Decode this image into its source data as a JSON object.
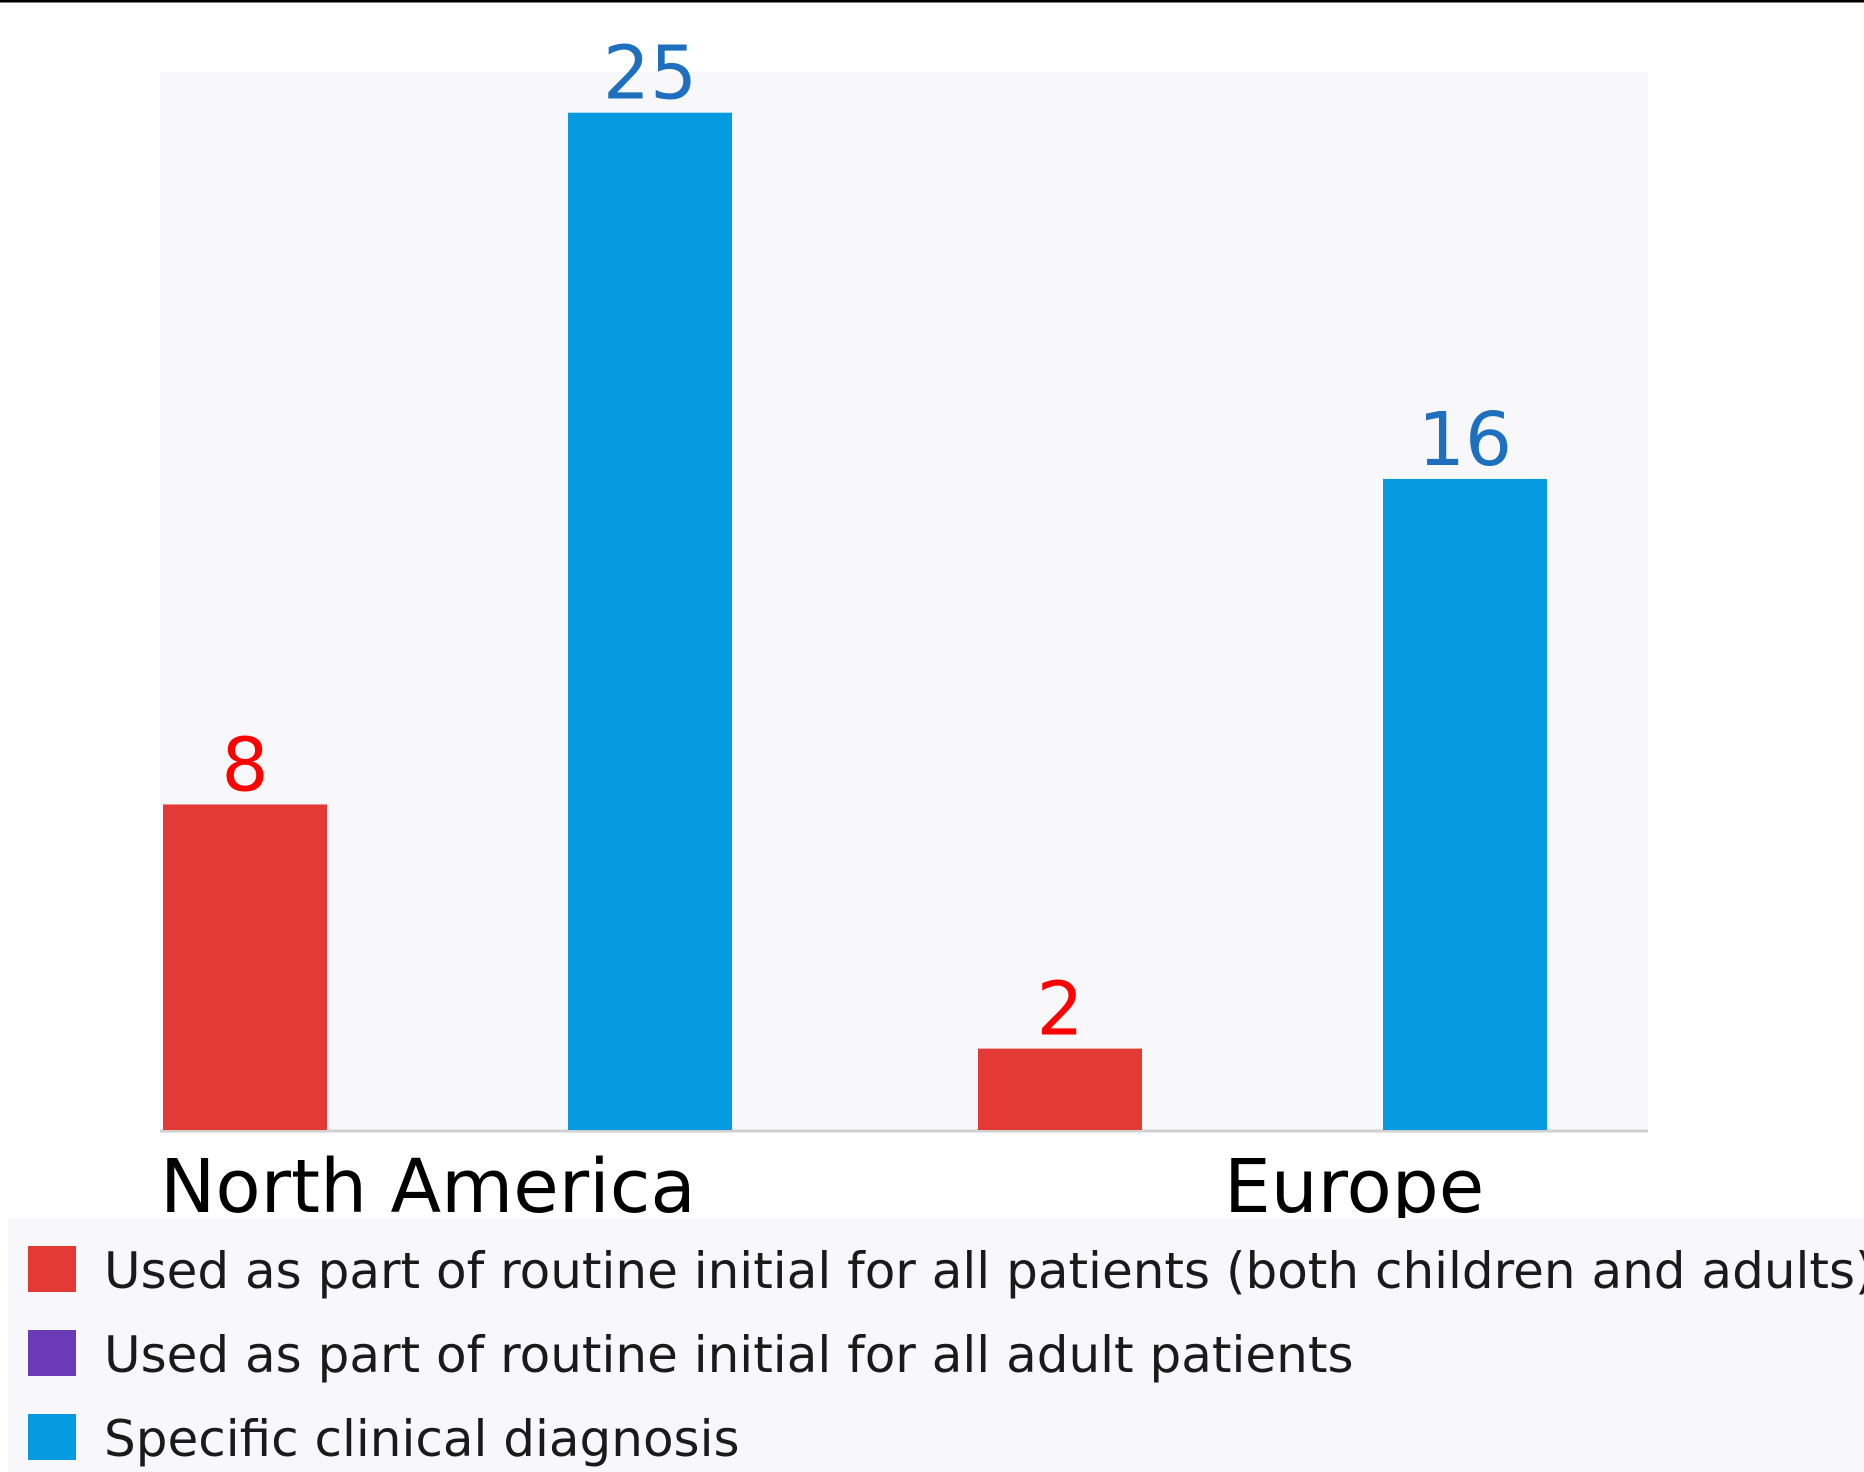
{
  "chart_data": {
    "type": "bar",
    "categories": [
      "North America",
      "Europe"
    ],
    "series": [
      {
        "name": "Used as part of routine initial for all patients (both children and adults)",
        "color": "#e43a35",
        "label_color": "#ff0000",
        "values": [
          8,
          2
        ]
      },
      {
        "name": "Used as part of routine initial for all adult patients",
        "color": "#6a3ab8",
        "label_color": "#6a3ab8",
        "values": [
          null,
          null
        ]
      },
      {
        "name": "Specific clinical diagnosis",
        "color": "#069be0",
        "label_color": "#1f6fbf",
        "values": [
          25,
          16
        ]
      }
    ],
    "ylim": [
      0,
      26
    ],
    "grid": false,
    "legend": "bottom-left",
    "title": "",
    "xlabel": "",
    "ylabel": ""
  },
  "colors": {
    "plot_background": "#f8f8fa",
    "axis_line": "#d0d0d0",
    "top_rule": "#000000"
  }
}
